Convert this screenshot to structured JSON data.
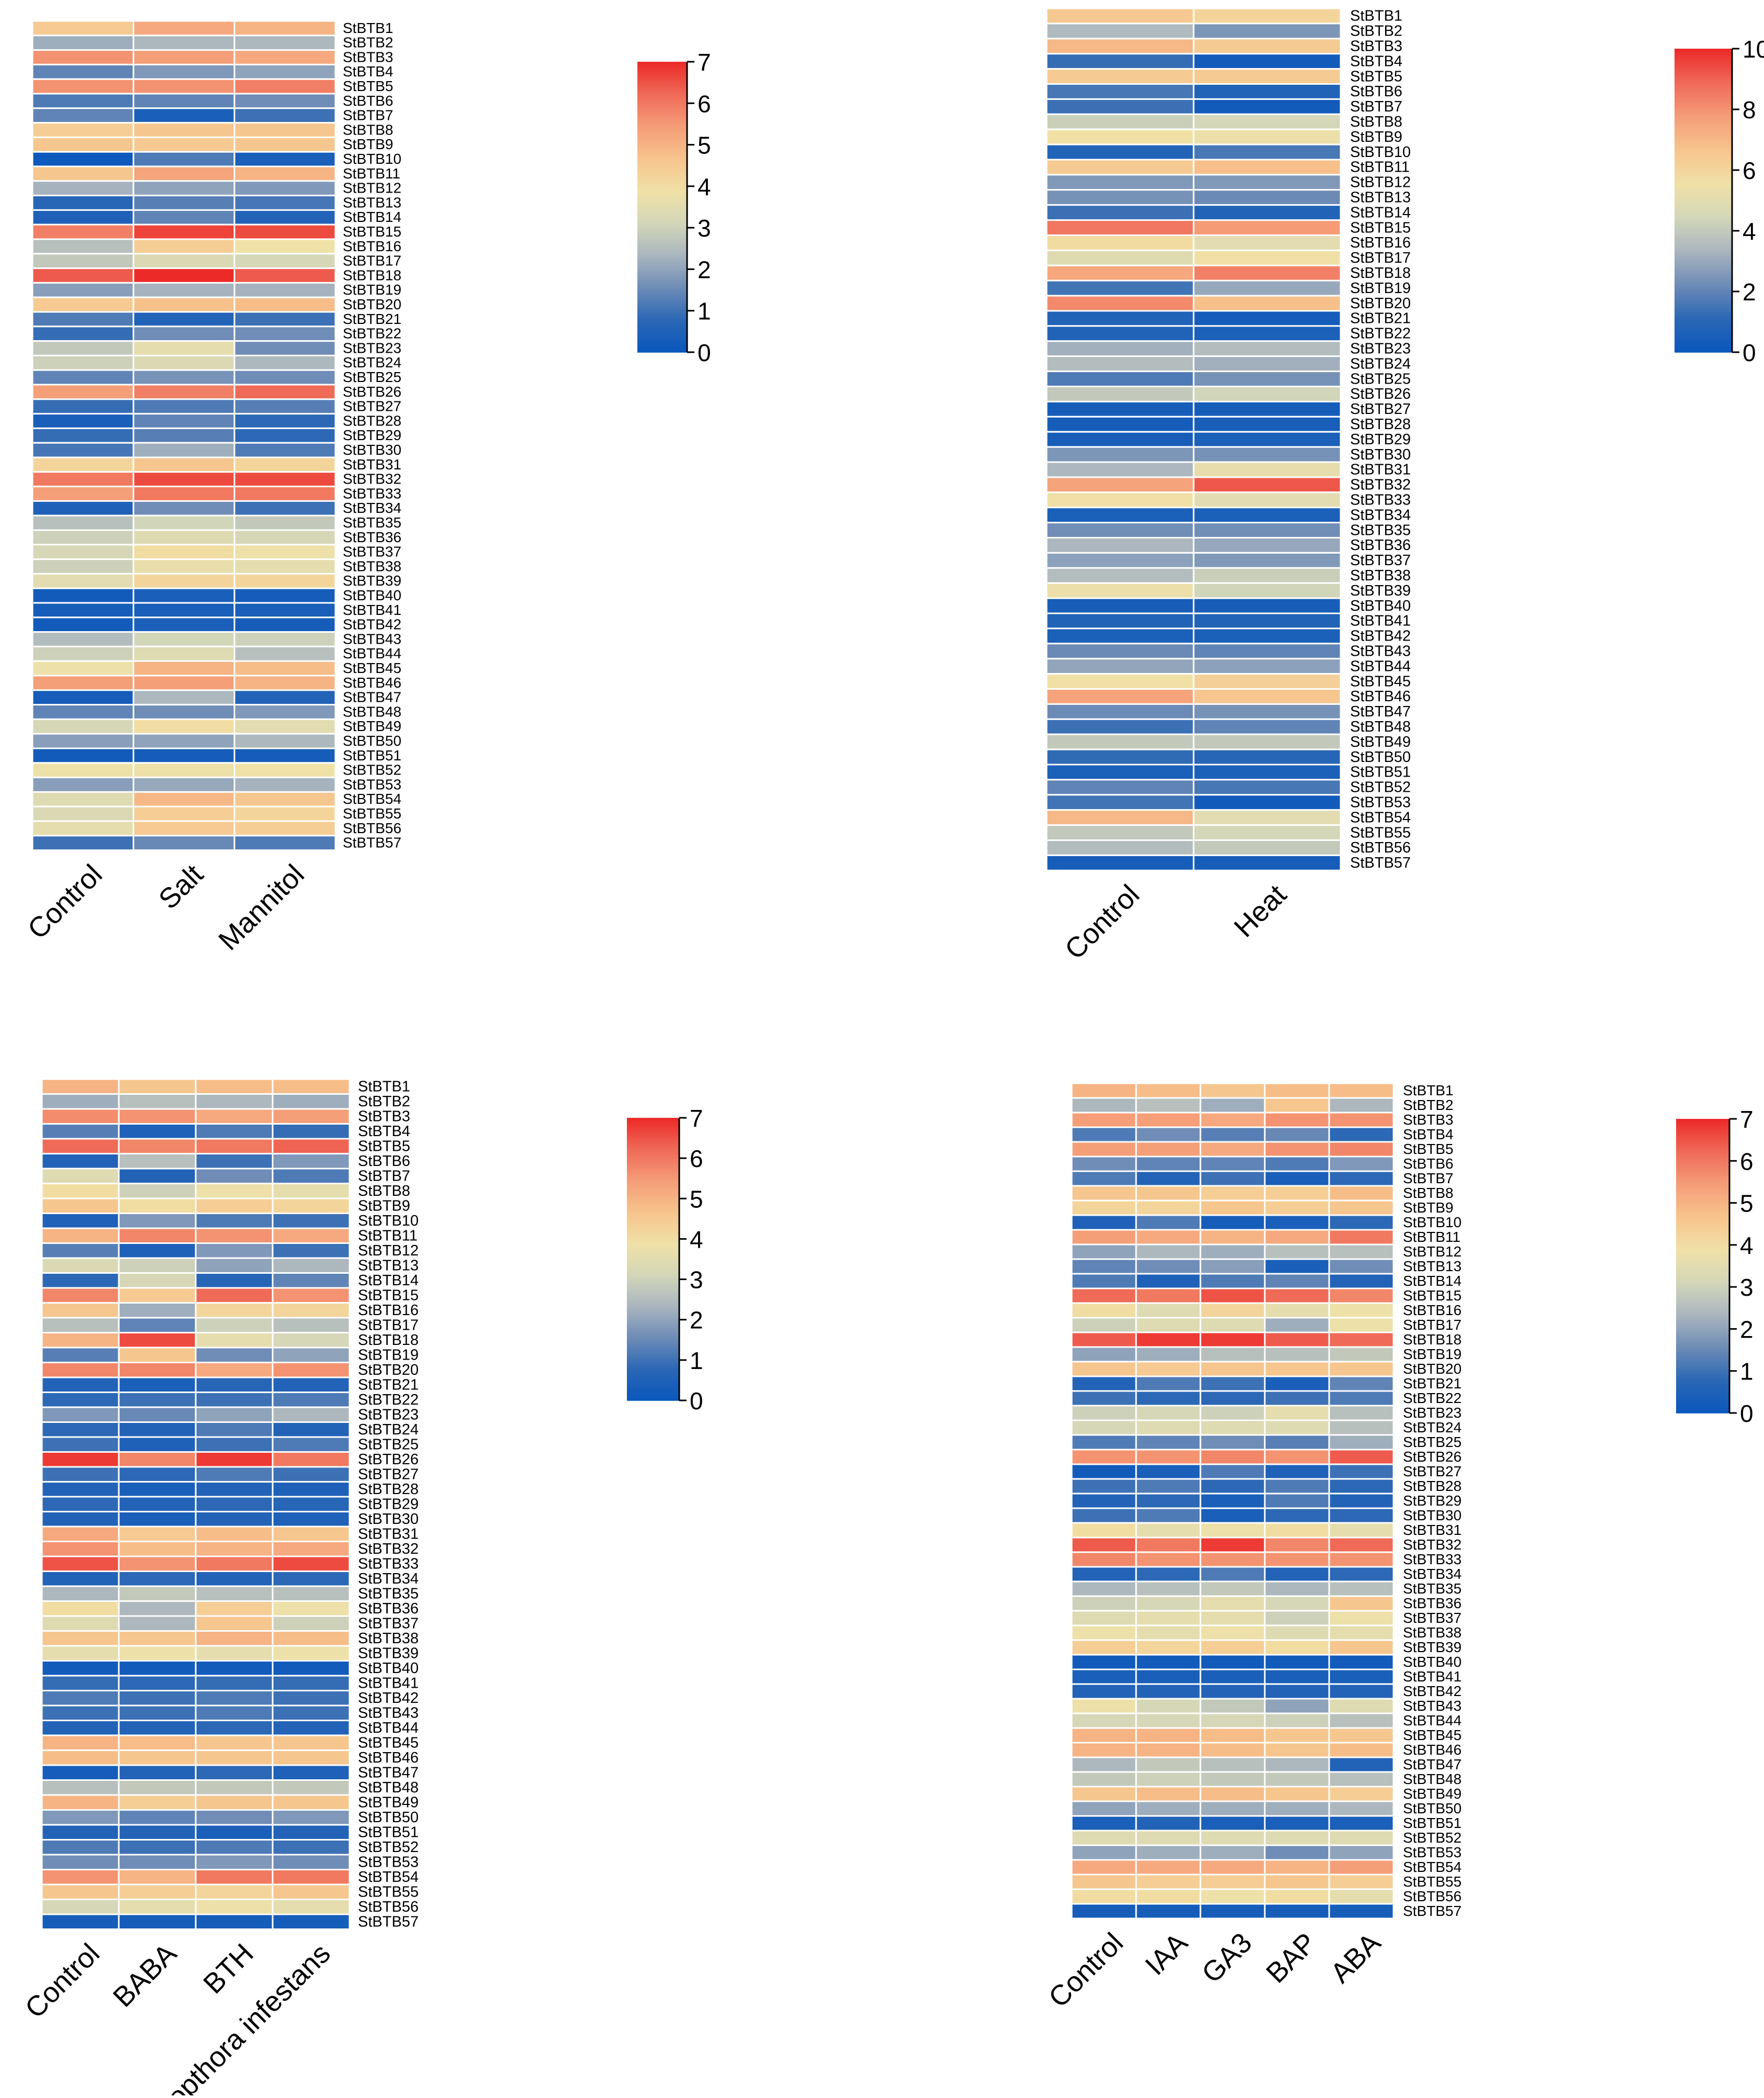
{
  "colorbar_colors": [
    "#0a57bd",
    "#2a67b5",
    "#6d8bb6",
    "#a9b5bf",
    "#d3d6b9",
    "#f0e1a6",
    "#f7c48d",
    "#f59d78",
    "#ef6a57",
    "#ec2a28"
  ],
  "genes": [
    "StBTB1",
    "StBTB2",
    "StBTB3",
    "StBTB4",
    "StBTB5",
    "StBTB6",
    "StBTB7",
    "StBTB8",
    "StBTB9",
    "StBTB10",
    "StBTB11",
    "StBTB12",
    "StBTB13",
    "StBTB14",
    "StBTB15",
    "StBTB16",
    "StBTB17",
    "StBTB18",
    "StBTB19",
    "StBTB20",
    "StBTB21",
    "StBTB22",
    "StBTB23",
    "StBTB24",
    "StBTB25",
    "StBTB26",
    "StBTB27",
    "StBTB28",
    "StBTB29",
    "StBTB30",
    "StBTB31",
    "StBTB32",
    "StBTB33",
    "StBTB34",
    "StBTB35",
    "StBTB36",
    "StBTB37",
    "StBTB38",
    "StBTB39",
    "StBTB40",
    "StBTB41",
    "StBTB42",
    "StBTB43",
    "StBTB44",
    "StBTB45",
    "StBTB46",
    "StBTB47",
    "StBTB48",
    "StBTB49",
    "StBTB50",
    "StBTB51",
    "StBTB52",
    "StBTB53",
    "StBTB54",
    "StBTB55",
    "StBTB56",
    "StBTB57"
  ],
  "chart_data": [
    {
      "type": "heatmap",
      "title": "",
      "columns": [
        "Control",
        "Salt",
        "Mannitol"
      ],
      "vmin": 0,
      "vmax": 7,
      "colorbar_ticks": [
        0,
        1,
        2,
        3,
        4,
        5,
        6,
        7
      ],
      "colorbar_ticks_text": [
        "0",
        "1",
        "2",
        "3",
        "4",
        "5",
        "6",
        "7"
      ],
      "values": [
        [
          4.5,
          5.2,
          5.0
        ],
        [
          2.2,
          2.4,
          2.4
        ],
        [
          5.6,
          5.4,
          5.2
        ],
        [
          1.4,
          1.8,
          2.0
        ],
        [
          5.6,
          5.6,
          5.9
        ],
        [
          1.2,
          1.4,
          1.6
        ],
        [
          1.4,
          0.4,
          1.0
        ],
        [
          4.4,
          4.6,
          4.6
        ],
        [
          4.6,
          4.5,
          4.6
        ],
        [
          0.1,
          1.2,
          0.4
        ],
        [
          4.6,
          5.3,
          5.0
        ],
        [
          2.3,
          2.0,
          1.8
        ],
        [
          0.7,
          1.3,
          1.1
        ],
        [
          0.5,
          1.4,
          0.6
        ],
        [
          5.9,
          6.7,
          6.6
        ],
        [
          2.6,
          4.4,
          3.9
        ],
        [
          2.8,
          3.3,
          3.2
        ],
        [
          6.4,
          7.0,
          6.4
        ],
        [
          1.9,
          2.3,
          2.3
        ],
        [
          4.5,
          4.7,
          4.8
        ],
        [
          1.2,
          0.6,
          1.0
        ],
        [
          0.9,
          1.6,
          1.6
        ],
        [
          2.8,
          3.6,
          1.6
        ],
        [
          3.0,
          3.3,
          2.4
        ],
        [
          1.4,
          1.7,
          1.6
        ],
        [
          5.4,
          5.9,
          6.2
        ],
        [
          0.9,
          1.2,
          1.3
        ],
        [
          0.4,
          1.4,
          0.8
        ],
        [
          0.9,
          1.3,
          0.8
        ],
        [
          1.1,
          2.2,
          1.2
        ],
        [
          4.2,
          4.6,
          4.2
        ],
        [
          6.0,
          6.6,
          6.6
        ],
        [
          5.4,
          6.0,
          6.0
        ],
        [
          0.5,
          1.6,
          1.0
        ],
        [
          2.6,
          3.1,
          2.8
        ],
        [
          3.0,
          3.4,
          3.2
        ],
        [
          3.2,
          4.0,
          3.8
        ],
        [
          3.0,
          3.7,
          3.6
        ],
        [
          3.5,
          4.2,
          4.2
        ],
        [
          0.2,
          0.4,
          0.3
        ],
        [
          0.3,
          0.4,
          0.4
        ],
        [
          0.2,
          0.4,
          0.3
        ],
        [
          2.5,
          3.1,
          3.0
        ],
        [
          3.0,
          3.4,
          2.6
        ],
        [
          3.8,
          5.0,
          4.8
        ],
        [
          5.4,
          5.4,
          5.0
        ],
        [
          0.3,
          2.4,
          0.6
        ],
        [
          1.4,
          1.6,
          1.8
        ],
        [
          3.2,
          4.0,
          3.5
        ],
        [
          1.9,
          2.0,
          2.4
        ],
        [
          0.2,
          0.3,
          0.3
        ],
        [
          3.8,
          3.8,
          3.9
        ],
        [
          1.9,
          2.1,
          2.3
        ],
        [
          3.4,
          4.9,
          4.6
        ],
        [
          3.3,
          4.4,
          4.2
        ],
        [
          3.6,
          4.5,
          4.4
        ],
        [
          1.0,
          1.5,
          1.2
        ]
      ]
    },
    {
      "type": "heatmap",
      "title": "",
      "columns": [
        "Control",
        "Heat"
      ],
      "vmin": 0,
      "vmax": 10,
      "colorbar_ticks": [
        0,
        2,
        4,
        6,
        8,
        10
      ],
      "colorbar_ticks_text": [
        "0",
        "2",
        "4",
        "6",
        "8",
        "10"
      ],
      "values": [
        [
          6.5,
          6.0
        ],
        [
          3.5,
          2.5
        ],
        [
          7.0,
          6.4
        ],
        [
          1.3,
          0.3
        ],
        [
          6.4,
          6.4
        ],
        [
          1.6,
          0.8
        ],
        [
          1.4,
          0.3
        ],
        [
          4.2,
          4.5
        ],
        [
          5.6,
          5.4
        ],
        [
          0.8,
          1.6
        ],
        [
          6.4,
          6.8
        ],
        [
          2.6,
          2.6
        ],
        [
          2.4,
          2.2
        ],
        [
          1.4,
          0.8
        ],
        [
          8.6,
          7.8
        ],
        [
          5.8,
          5.0
        ],
        [
          4.9,
          5.6
        ],
        [
          7.5,
          8.4
        ],
        [
          1.5,
          3.0
        ],
        [
          8.2,
          6.8
        ],
        [
          0.8,
          0.4
        ],
        [
          0.8,
          0.6
        ],
        [
          3.2,
          3.6
        ],
        [
          3.6,
          3.2
        ],
        [
          1.7,
          2.4
        ],
        [
          4.0,
          4.4
        ],
        [
          0.4,
          0.4
        ],
        [
          0.4,
          0.5
        ],
        [
          0.5,
          0.6
        ],
        [
          2.5,
          2.4
        ],
        [
          3.4,
          5.2
        ],
        [
          7.6,
          9.2
        ],
        [
          5.6,
          5.0
        ],
        [
          0.6,
          0.6
        ],
        [
          2.3,
          2.3
        ],
        [
          3.4,
          3.0
        ],
        [
          2.8,
          2.6
        ],
        [
          3.6,
          4.2
        ],
        [
          5.4,
          4.4
        ],
        [
          0.5,
          0.5
        ],
        [
          0.8,
          0.8
        ],
        [
          0.6,
          0.6
        ],
        [
          2.2,
          2.0
        ],
        [
          2.9,
          2.8
        ],
        [
          5.6,
          6.2
        ],
        [
          7.6,
          6.6
        ],
        [
          2.2,
          2.4
        ],
        [
          1.4,
          2.0
        ],
        [
          4.0,
          4.0
        ],
        [
          1.2,
          1.0
        ],
        [
          0.6,
          0.6
        ],
        [
          2.0,
          1.6
        ],
        [
          1.5,
          0.3
        ],
        [
          7.0,
          5.0
        ],
        [
          4.0,
          4.5
        ],
        [
          3.6,
          4.0
        ],
        [
          0.4,
          0.4
        ]
      ]
    },
    {
      "type": "heatmap",
      "title": "",
      "columns": [
        "Control",
        "BABA",
        "BTH",
        "Phytopthora infestans"
      ],
      "vmin": 0,
      "vmax": 7,
      "colorbar_ticks": [
        0,
        1,
        2,
        3,
        4,
        5,
        6,
        7
      ],
      "colorbar_ticks_text": [
        "0",
        "1",
        "2",
        "3",
        "4",
        "5",
        "6",
        "7"
      ],
      "values": [
        [
          5.0,
          4.6,
          4.8,
          4.8
        ],
        [
          2.2,
          2.6,
          2.4,
          2.2
        ],
        [
          5.7,
          5.6,
          5.2,
          5.4
        ],
        [
          1.3,
          0.5,
          1.2,
          0.9
        ],
        [
          6.2,
          5.8,
          6.0,
          6.3
        ],
        [
          0.6,
          2.6,
          1.0,
          1.8
        ],
        [
          3.4,
          0.6,
          1.6,
          1.2
        ],
        [
          4.0,
          3.0,
          3.8,
          3.6
        ],
        [
          4.6,
          4.0,
          4.4,
          4.2
        ],
        [
          0.5,
          1.8,
          1.2,
          1.0
        ],
        [
          5.0,
          5.8,
          5.6,
          5.2
        ],
        [
          1.3,
          0.5,
          1.8,
          1.0
        ],
        [
          3.3,
          3.0,
          2.0,
          2.4
        ],
        [
          0.8,
          3.2,
          0.7,
          1.4
        ],
        [
          5.8,
          4.5,
          6.2,
          5.6
        ],
        [
          4.6,
          2.2,
          4.2,
          4.2
        ],
        [
          2.6,
          1.4,
          3.0,
          2.6
        ],
        [
          5.0,
          6.6,
          3.6,
          3.2
        ],
        [
          1.3,
          4.6,
          1.6,
          2.0
        ],
        [
          5.8,
          5.8,
          5.2,
          5.6
        ],
        [
          0.6,
          0.4,
          0.7,
          0.6
        ],
        [
          0.8,
          1.0,
          1.0,
          1.2
        ],
        [
          1.8,
          1.5,
          2.0,
          2.4
        ],
        [
          0.8,
          0.6,
          1.2,
          0.6
        ],
        [
          1.0,
          0.5,
          1.0,
          1.2
        ],
        [
          6.8,
          5.8,
          6.8,
          6.0
        ],
        [
          1.0,
          0.8,
          1.2,
          1.0
        ],
        [
          0.6,
          0.4,
          0.6,
          0.5
        ],
        [
          0.8,
          0.6,
          0.8,
          0.7
        ],
        [
          0.6,
          0.4,
          0.6,
          0.5
        ],
        [
          5.2,
          4.5,
          4.8,
          4.6
        ],
        [
          5.6,
          4.8,
          5.0,
          5.2
        ],
        [
          6.5,
          5.6,
          6.0,
          6.6
        ],
        [
          0.6,
          0.8,
          0.6,
          0.8
        ],
        [
          2.4,
          2.8,
          2.6,
          2.6
        ],
        [
          4.0,
          2.4,
          4.4,
          3.8
        ],
        [
          3.4,
          2.4,
          4.6,
          3.0
        ],
        [
          4.6,
          4.6,
          5.0,
          4.8
        ],
        [
          3.6,
          3.8,
          3.6,
          3.8
        ],
        [
          0.2,
          0.2,
          0.2,
          0.2
        ],
        [
          0.9,
          0.8,
          0.9,
          0.9
        ],
        [
          1.2,
          1.0,
          1.2,
          1.0
        ],
        [
          1.0,
          1.0,
          1.2,
          1.0
        ],
        [
          0.6,
          0.6,
          0.8,
          0.6
        ],
        [
          5.0,
          4.8,
          4.6,
          4.6
        ],
        [
          4.8,
          4.6,
          4.6,
          4.6
        ],
        [
          0.3,
          0.6,
          0.8,
          0.5
        ],
        [
          2.6,
          2.8,
          2.8,
          2.8
        ],
        [
          5.0,
          4.4,
          4.6,
          4.6
        ],
        [
          1.8,
          1.4,
          1.6,
          1.8
        ],
        [
          0.6,
          0.6,
          0.4,
          0.6
        ],
        [
          1.2,
          1.0,
          1.2,
          1.0
        ],
        [
          1.6,
          1.6,
          1.8,
          1.6
        ],
        [
          5.6,
          5.0,
          6.0,
          6.0
        ],
        [
          4.6,
          4.4,
          4.2,
          4.6
        ],
        [
          3.2,
          3.6,
          3.8,
          3.6
        ],
        [
          0.3,
          0.3,
          0.3,
          0.3
        ]
      ]
    },
    {
      "type": "heatmap",
      "title": "",
      "columns": [
        "Control",
        "IAA",
        "GA3",
        "BAP",
        "ABA"
      ],
      "vmin": 0,
      "vmax": 7,
      "colorbar_ticks": [
        0,
        1,
        2,
        3,
        4,
        5,
        6,
        7
      ],
      "colorbar_ticks_text": [
        "0",
        "1",
        "2",
        "3",
        "4",
        "5",
        "6",
        "7"
      ],
      "values": [
        [
          5.0,
          4.8,
          4.6,
          4.8,
          4.8
        ],
        [
          2.4,
          2.6,
          2.2,
          4.6,
          2.4
        ],
        [
          5.4,
          5.4,
          5.2,
          5.6,
          5.6
        ],
        [
          1.2,
          1.6,
          1.3,
          1.5,
          0.8
        ],
        [
          5.4,
          5.4,
          5.2,
          5.6,
          5.8
        ],
        [
          1.6,
          1.4,
          1.4,
          1.2,
          1.8
        ],
        [
          1.2,
          0.6,
          1.0,
          0.4,
          0.8
        ],
        [
          4.6,
          4.6,
          4.4,
          4.4,
          4.8
        ],
        [
          4.2,
          4.2,
          4.6,
          4.4,
          4.6
        ],
        [
          0.5,
          1.2,
          0.3,
          0.4,
          0.8
        ],
        [
          5.4,
          5.2,
          5.0,
          5.2,
          6.0
        ],
        [
          2.0,
          2.4,
          2.2,
          2.6,
          2.6
        ],
        [
          1.4,
          1.6,
          1.9,
          0.4,
          1.6
        ],
        [
          1.2,
          0.5,
          1.2,
          1.4,
          0.6
        ],
        [
          6.2,
          6.0,
          6.5,
          6.2,
          5.8
        ],
        [
          4.0,
          3.4,
          4.2,
          3.6,
          3.8
        ],
        [
          3.0,
          3.4,
          3.4,
          2.2,
          3.8
        ],
        [
          6.4,
          6.8,
          6.8,
          6.4,
          6.2
        ],
        [
          2.0,
          2.2,
          2.6,
          2.6,
          2.8
        ],
        [
          4.6,
          4.5,
          4.6,
          4.6,
          4.6
        ],
        [
          0.6,
          1.2,
          1.0,
          0.4,
          1.4
        ],
        [
          1.0,
          0.8,
          0.8,
          1.0,
          1.2
        ],
        [
          3.0,
          3.2,
          3.0,
          3.6,
          2.6
        ],
        [
          3.2,
          3.4,
          3.4,
          3.4,
          2.6
        ],
        [
          1.2,
          1.4,
          1.6,
          1.3,
          2.2
        ],
        [
          5.6,
          5.6,
          5.8,
          5.6,
          6.4
        ],
        [
          0.2,
          0.4,
          1.2,
          0.5,
          1.0
        ],
        [
          1.0,
          1.2,
          0.8,
          1.2,
          0.8
        ],
        [
          0.6,
          0.8,
          0.4,
          1.2,
          0.6
        ],
        [
          1.0,
          1.2,
          0.4,
          0.8,
          0.8
        ],
        [
          4.0,
          3.6,
          3.8,
          4.0,
          3.6
        ],
        [
          6.4,
          6.0,
          6.8,
          5.8,
          6.2
        ],
        [
          5.8,
          5.6,
          5.6,
          5.6,
          5.6
        ],
        [
          0.6,
          0.8,
          1.2,
          0.6,
          0.8
        ],
        [
          2.4,
          2.6,
          2.8,
          2.4,
          2.6
        ],
        [
          3.0,
          3.2,
          3.6,
          3.2,
          4.6
        ],
        [
          3.4,
          3.6,
          3.6,
          3.0,
          3.8
        ],
        [
          3.8,
          3.6,
          3.8,
          3.4,
          3.6
        ],
        [
          4.4,
          4.2,
          4.4,
          4.0,
          4.6
        ],
        [
          0.2,
          0.2,
          0.2,
          0.2,
          0.2
        ],
        [
          0.4,
          0.4,
          0.4,
          0.4,
          0.4
        ],
        [
          0.6,
          0.6,
          0.6,
          0.6,
          0.6
        ],
        [
          3.8,
          3.2,
          2.8,
          2.0,
          3.4
        ],
        [
          3.2,
          3.2,
          3.2,
          3.0,
          2.6
        ],
        [
          5.0,
          5.0,
          4.8,
          4.6,
          4.6
        ],
        [
          5.0,
          5.0,
          4.8,
          4.6,
          4.8
        ],
        [
          2.4,
          2.8,
          2.6,
          2.4,
          0.6
        ],
        [
          2.8,
          3.0,
          2.8,
          2.8,
          2.6
        ],
        [
          4.6,
          4.8,
          4.8,
          4.6,
          4.4
        ],
        [
          2.0,
          2.2,
          2.2,
          2.2,
          2.4
        ],
        [
          0.4,
          0.6,
          0.4,
          0.4,
          0.4
        ],
        [
          3.4,
          3.4,
          3.4,
          3.4,
          3.4
        ],
        [
          2.0,
          2.2,
          2.2,
          1.6,
          2.0
        ],
        [
          5.2,
          5.2,
          5.2,
          5.0,
          5.4
        ],
        [
          4.6,
          4.4,
          4.4,
          4.6,
          4.4
        ],
        [
          4.0,
          4.0,
          3.8,
          4.0,
          3.6
        ],
        [
          0.3,
          0.3,
          0.3,
          0.3,
          0.3
        ]
      ]
    }
  ]
}
